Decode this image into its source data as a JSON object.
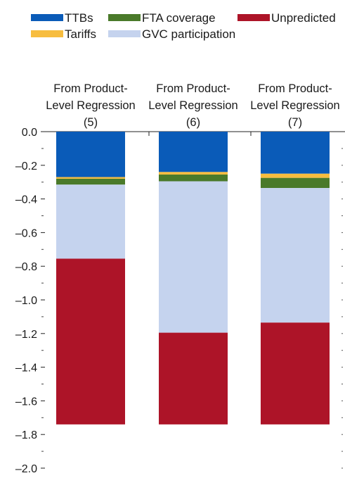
{
  "chart_data": {
    "type": "bar",
    "stacked": true,
    "categories": [
      [
        "From Product-",
        "Level Regression",
        "(5)"
      ],
      [
        "From Product-",
        "Level Regression",
        "(6)"
      ],
      [
        "From Product-",
        "Level Regression",
        "(7)"
      ]
    ],
    "series": [
      {
        "name": "TTBs",
        "color": "#0a5bb8",
        "values": [
          -0.27,
          -0.24,
          -0.25
        ]
      },
      {
        "name": "Tariffs",
        "color": "#f7bd3f",
        "values": [
          -0.01,
          -0.015,
          -0.025
        ]
      },
      {
        "name": "FTA coverage",
        "color": "#4a7a2a",
        "values": [
          -0.035,
          -0.04,
          -0.06
        ]
      },
      {
        "name": "GVC participation",
        "color": "#c5d3ee",
        "values": [
          -0.44,
          -0.9,
          -0.8
        ]
      },
      {
        "name": "Unpredicted",
        "color": "#ad1428",
        "values": [
          -0.985,
          -0.545,
          -0.605
        ]
      }
    ],
    "legend": {
      "position": "top-left",
      "rows": [
        [
          "TTBs",
          "FTA coverage",
          "Unpredicted"
        ],
        [
          "Tariffs",
          "GVC participation"
        ]
      ]
    },
    "ylim": [
      -2.0,
      0.0
    ],
    "yticks": [
      "0.0",
      "–0.2",
      "–0.4",
      "–0.6",
      "–0.8",
      "–1.0",
      "–1.2",
      "–1.4",
      "–1.6",
      "–1.8",
      "–2.0"
    ],
    "grid": false,
    "title": "",
    "xlabel": "",
    "ylabel": ""
  }
}
